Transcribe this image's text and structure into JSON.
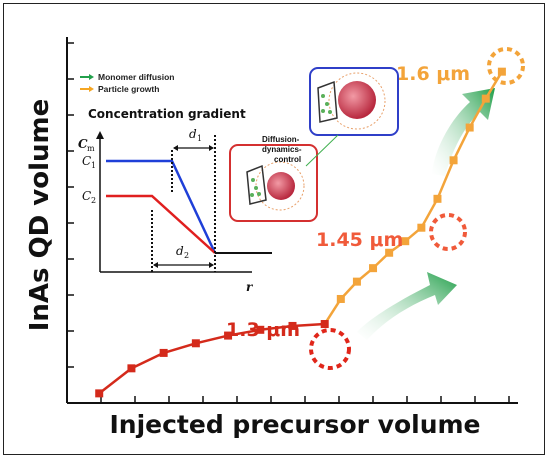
{
  "chart_data": {
    "type": "line",
    "xlabel": "Injected precursor volume",
    "ylabel": "InAs QD volume",
    "series": [
      {
        "values": [
          {
            "x": 1,
            "y": 0.25
          },
          {
            "x": 2,
            "y": 0.9
          },
          {
            "x": 3,
            "y": 1.3
          },
          {
            "x": 4,
            "y": 1.55
          },
          {
            "x": 5,
            "y": 1.75
          },
          {
            "x": 6,
            "y": 1.9
          },
          {
            "x": 7,
            "y": 2.0
          },
          {
            "x": 8,
            "y": 2.05
          },
          {
            "x": 8.5,
            "y": 2.7
          },
          {
            "x": 9,
            "y": 3.15
          },
          {
            "x": 9.5,
            "y": 3.5
          },
          {
            "x": 10,
            "y": 3.9
          },
          {
            "x": 10.5,
            "y": 4.2
          },
          {
            "x": 11,
            "y": 4.55
          },
          {
            "x": 11.5,
            "y": 5.3
          },
          {
            "x": 12,
            "y": 6.3
          },
          {
            "x": 12.5,
            "y": 7.15
          },
          {
            "x": 13,
            "y": 7.9
          },
          {
            "x": 13.5,
            "y": 8.6
          }
        ]
      }
    ],
    "annotations": {
      "a1": "1.3 μm",
      "a2": "1.45 μm",
      "a3": "1.6 μm",
      "diffusion_label": "Diffusion-dynamics-control",
      "diffusion_line1": "Diffusion-",
      "diffusion_line2": "dynamics-",
      "diffusion_line3": "control"
    },
    "legend": [
      {
        "label": "Monomer diffusion",
        "color": "#22a04b"
      },
      {
        "label": "Particle growth",
        "color": "#f5a623"
      }
    ],
    "inset": {
      "title": "Concentration gradient",
      "y_axis": "C",
      "y_sub": "m",
      "x_axis": "r",
      "c1": "C",
      "c1_sub": "1",
      "c2": "C",
      "c2_sub": "2",
      "d1": "d",
      "d1_sub": "1",
      "d2": "d",
      "d2_sub": "2"
    },
    "colors": {
      "red": "#d42a1b",
      "orange_red": "#f05a3a",
      "orange": "#f3a43a",
      "green": "#22a04b",
      "blue": "#1f3fd8"
    }
  }
}
